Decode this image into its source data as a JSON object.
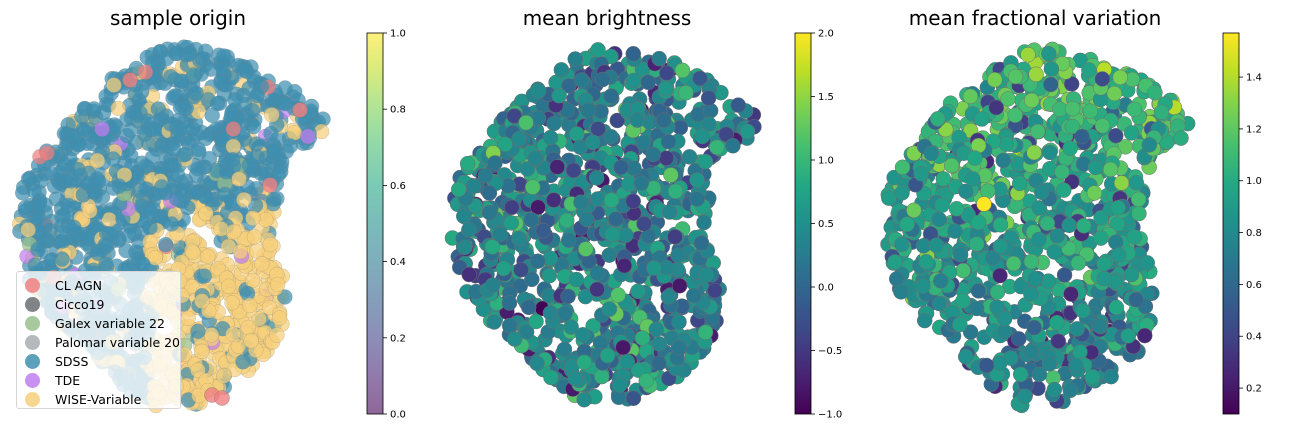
{
  "chart_data": [
    {
      "type": "scatter",
      "title": "sample origin",
      "colorbar": {
        "min": 0.0,
        "max": 1.0,
        "ticks": [
          "0.0",
          "0.2",
          "0.4",
          "0.6",
          "0.8",
          "1.0"
        ],
        "colormap": "viridis (alpha 0.6)"
      },
      "legend": {
        "placement": "lower-left",
        "entries": [
          {
            "label": "CL AGN",
            "color": "#f08080"
          },
          {
            "label": "Cicco19",
            "color": "#6b6e72"
          },
          {
            "label": "Galex variable 22",
            "color": "#98bf8c"
          },
          {
            "label": "Palomar variable 20",
            "color": "#a8acb0"
          },
          {
            "label": "SDSS",
            "color": "#3f8fb0"
          },
          {
            "label": "TDE",
            "color": "#c07ef0"
          },
          {
            "label": "WISE-Variable",
            "color": "#f6d07c"
          }
        ]
      }
    },
    {
      "type": "scatter",
      "title": "mean brightness",
      "colorbar": {
        "min": -1.0,
        "max": 2.0,
        "ticks": [
          "−1.0",
          "−0.5",
          "0.0",
          "0.5",
          "1.0",
          "1.5",
          "2.0"
        ],
        "colormap": "viridis"
      }
    },
    {
      "type": "scatter",
      "title": "mean fractional variation",
      "colorbar": {
        "min": 0.1,
        "max": 1.57,
        "ticks": [
          "0.2",
          "0.4",
          "0.6",
          "0.8",
          "1.0",
          "1.2",
          "1.4"
        ],
        "colormap": "viridis"
      }
    }
  ]
}
